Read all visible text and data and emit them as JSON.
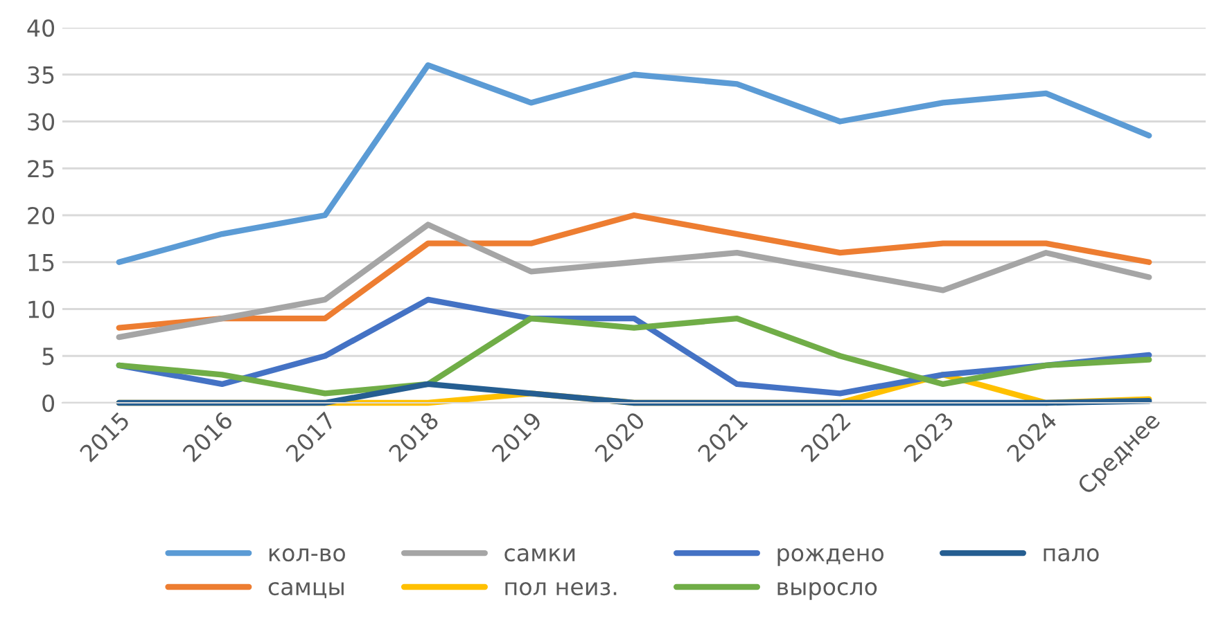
{
  "chart_data": {
    "type": "line",
    "categories": [
      "2015",
      "2016",
      "2017",
      "2018",
      "2019",
      "2020",
      "2021",
      "2022",
      "2023",
      "2024",
      "Среднее"
    ],
    "series": [
      {
        "name": "кол-во",
        "color": "#5b9bd5",
        "values": [
          15,
          18,
          20,
          36,
          32,
          35,
          34,
          30,
          32,
          33,
          28.5
        ]
      },
      {
        "name": "самцы",
        "color": "#ed7d31",
        "values": [
          8,
          9,
          9,
          17,
          17,
          20,
          18,
          16,
          17,
          17,
          15
        ]
      },
      {
        "name": "самки",
        "color": "#a5a5a5",
        "values": [
          7,
          9,
          11,
          19,
          14,
          15,
          16,
          14,
          12,
          16,
          13.4
        ]
      },
      {
        "name": "пол неиз.",
        "color": "#ffc000",
        "values": [
          0,
          0,
          0,
          0,
          1,
          0,
          0,
          0,
          3,
          0,
          0.4
        ]
      },
      {
        "name": "рождено",
        "color": "#4472c4",
        "values": [
          4,
          2,
          5,
          11,
          9,
          9,
          2,
          1,
          3,
          4,
          5.1
        ]
      },
      {
        "name": "выросло",
        "color": "#70ad47",
        "values": [
          4,
          3,
          1,
          2,
          9,
          8,
          9,
          5,
          2,
          4,
          4.6
        ]
      },
      {
        "name": "пало",
        "color": "#255e91",
        "values": [
          0,
          0,
          0,
          2,
          1,
          0,
          0,
          0,
          0,
          0,
          0.2
        ]
      }
    ],
    "ylim": [
      0,
      40
    ],
    "yticks": [
      0,
      5,
      10,
      15,
      20,
      25,
      30,
      35,
      40
    ],
    "grid": "y",
    "legend": "bottom",
    "marker": "none",
    "line_style": "solid"
  }
}
